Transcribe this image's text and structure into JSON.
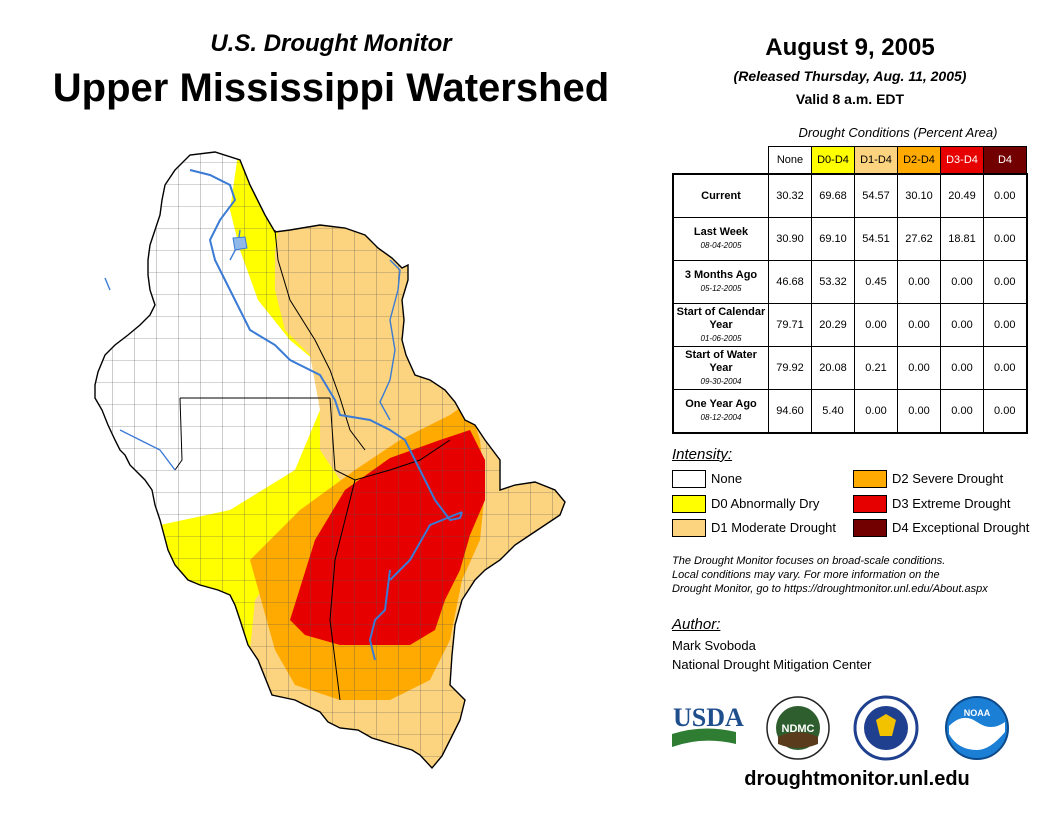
{
  "header": {
    "subtitle": "U.S. Drought Monitor",
    "title": "Upper Mississippi Watershed",
    "date": "August 9, 2005",
    "released": "(Released Thursday, Aug. 11, 2005)",
    "valid": "Valid 8 a.m. EDT"
  },
  "table": {
    "caption": "Drought Conditions (Percent Area)",
    "columns": [
      "None",
      "D0-D4",
      "D1-D4",
      "D2-D4",
      "D3-D4",
      "D4"
    ],
    "column_colors": [
      "#ffffff",
      "#ffff00",
      "#fcd37f",
      "#ffaa00",
      "#e60000",
      "#730000"
    ],
    "rows": [
      {
        "label": "Current",
        "date": "",
        "values": [
          "30.32",
          "69.68",
          "54.57",
          "30.10",
          "20.49",
          "0.00"
        ]
      },
      {
        "label": "Last Week",
        "date": "08-04-2005",
        "values": [
          "30.90",
          "69.10",
          "54.51",
          "27.62",
          "18.81",
          "0.00"
        ]
      },
      {
        "label": "3 Months Ago",
        "date": "05-12-2005",
        "values": [
          "46.68",
          "53.32",
          "0.45",
          "0.00",
          "0.00",
          "0.00"
        ]
      },
      {
        "label": "Start of Calendar Year",
        "date": "01-06-2005",
        "values": [
          "79.71",
          "20.29",
          "0.00",
          "0.00",
          "0.00",
          "0.00"
        ]
      },
      {
        "label": "Start of Water Year",
        "date": "09-30-2004",
        "values": [
          "79.92",
          "20.08",
          "0.21",
          "0.00",
          "0.00",
          "0.00"
        ]
      },
      {
        "label": "One Year Ago",
        "date": "08-12-2004",
        "values": [
          "94.60",
          "5.40",
          "0.00",
          "0.00",
          "0.00",
          "0.00"
        ]
      }
    ]
  },
  "legend": {
    "heading": "Intensity:",
    "items": [
      {
        "label": "None",
        "color": "#ffffff"
      },
      {
        "label": "D0 Abnormally Dry",
        "color": "#ffff00"
      },
      {
        "label": "D1 Moderate Drought",
        "color": "#fcd37f"
      },
      {
        "label": "D2 Severe Drought",
        "color": "#ffaa00"
      },
      {
        "label": "D3 Extreme Drought",
        "color": "#e60000"
      },
      {
        "label": "D4 Exceptional Drought",
        "color": "#730000"
      }
    ]
  },
  "note": {
    "line1": "The Drought Monitor focuses on broad-scale conditions.",
    "line2": "Local conditions may vary. For more information on the",
    "line3": "Drought Monitor, go to https://droughtmonitor.unl.edu/About.aspx"
  },
  "author": {
    "heading": "Author:",
    "name": "Mark Svoboda",
    "org": "National Drought Mitigation Center"
  },
  "logos": {
    "usda": "USDA",
    "ndmc": "NDMC",
    "noaa": "NOAA"
  },
  "footer": {
    "website": "droughtmonitor.unl.edu"
  }
}
